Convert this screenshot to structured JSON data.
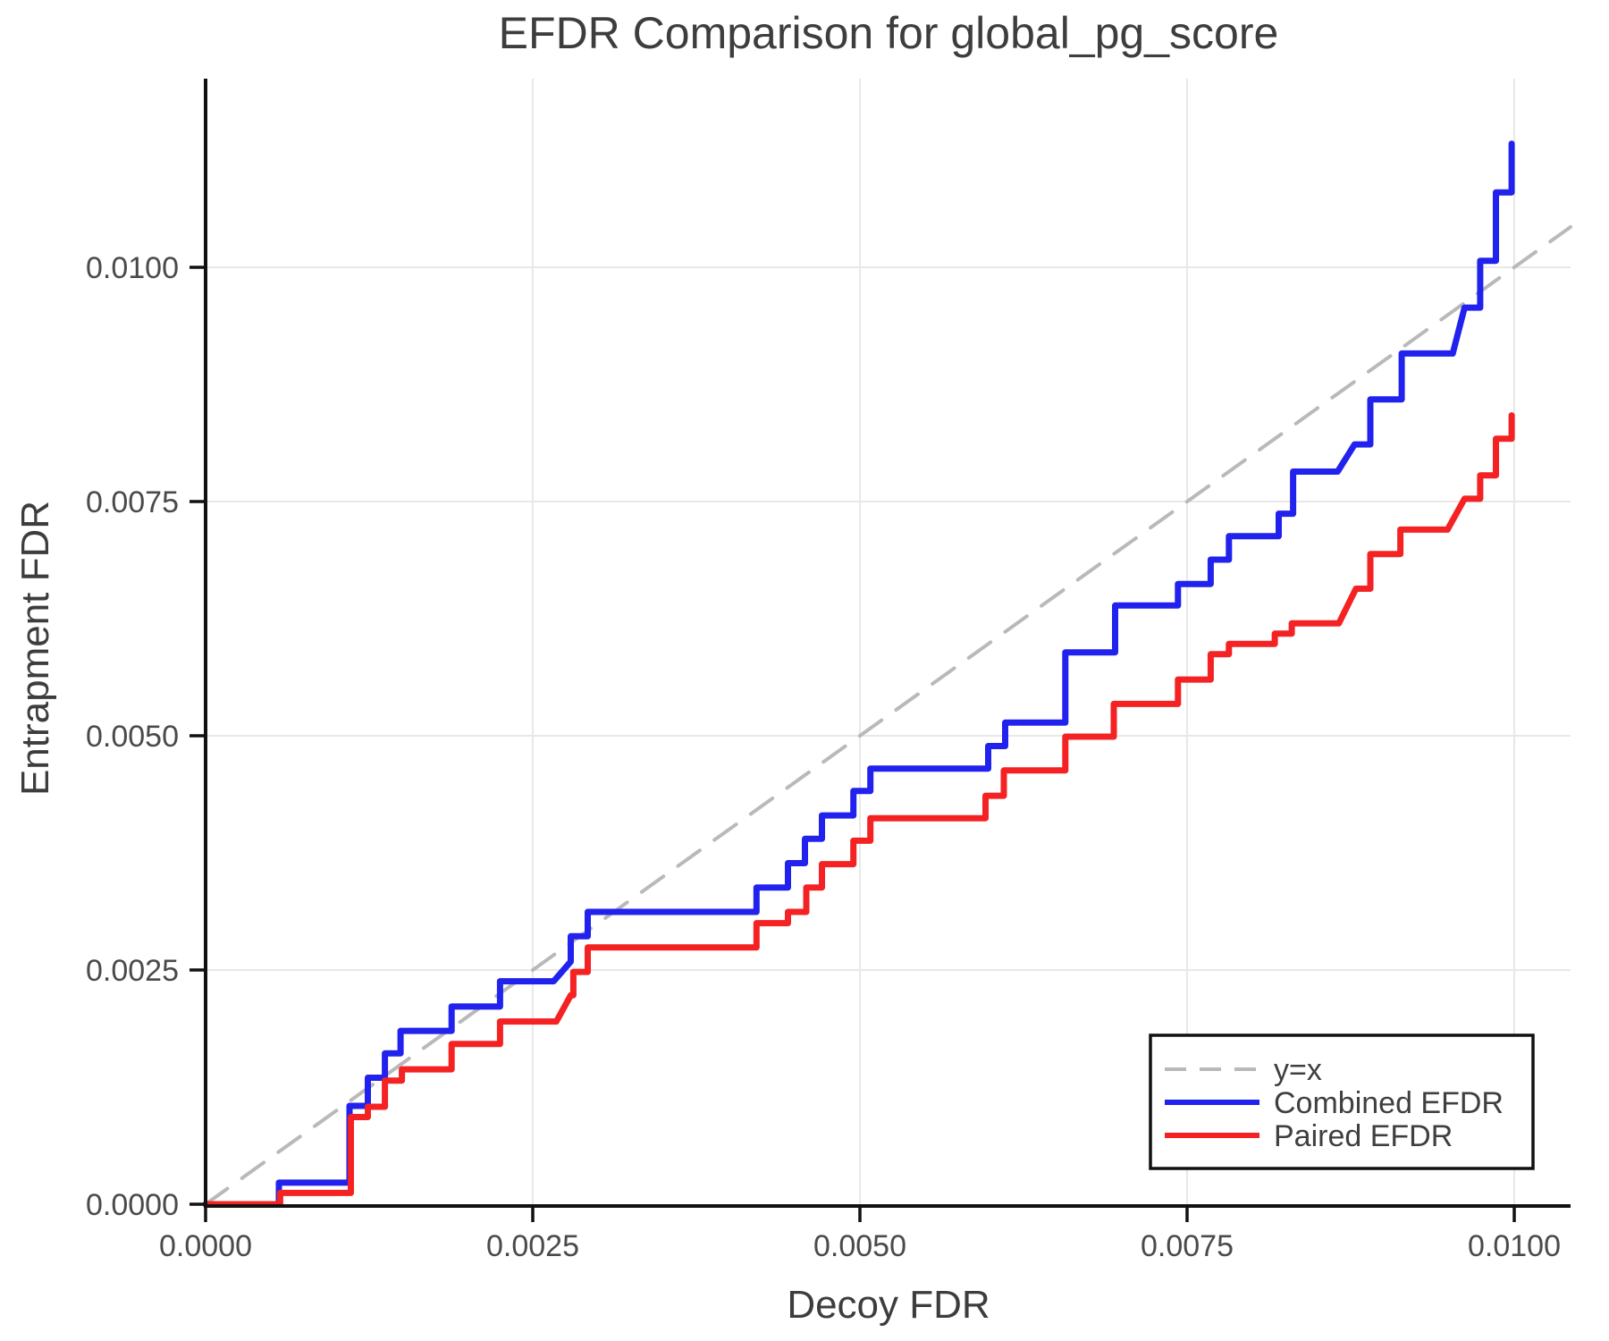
{
  "page": {
    "background": "#ffffff"
  },
  "chart_data": {
    "type": "line",
    "subtype": "step-function-comparison",
    "title": "EFDR Comparison for global_pg_score",
    "xlabel": "Decoy FDR",
    "ylabel": "Entrapment FDR",
    "xlim": [
      0,
      0.01043
    ],
    "ylim": [
      0,
      0.01201
    ],
    "grid": true,
    "legend_position": "lower right",
    "x_axis": {
      "ticks": [
        {
          "value": 0.0,
          "label": "0.0000"
        },
        {
          "value": 0.0025,
          "label": "0.0025"
        },
        {
          "value": 0.005,
          "label": "0.0050"
        },
        {
          "value": 0.0075,
          "label": "0.0075"
        },
        {
          "value": 0.01,
          "label": "0.0100"
        }
      ]
    },
    "y_axis": {
      "ticks": [
        {
          "value": 0.0,
          "label": "0.0000"
        },
        {
          "value": 0.0025,
          "label": "0.0025"
        },
        {
          "value": 0.005,
          "label": "0.0050"
        },
        {
          "value": 0.0075,
          "label": "0.0075"
        },
        {
          "value": 0.01,
          "label": "0.0100"
        }
      ]
    },
    "colors": {
      "identity_line": "#b9b9b9",
      "combined_efdr": "#2222ee",
      "paired_efdr": "#f42222",
      "gridline": "#e8e8e8",
      "axis": "#111111",
      "text": "#3d3d3d",
      "tick_text": "#4a4a4a"
    },
    "series": [
      {
        "name": "y=x",
        "color": "#b9b9b9",
        "style": "dashed",
        "width": 4,
        "points": [
          [
            0,
            0
          ],
          [
            0.01043,
            0.01043
          ]
        ]
      },
      {
        "name": "Combined EFDR",
        "color": "#2222ee",
        "style": "solid",
        "width": 7,
        "points": [
          [
            0,
            0
          ],
          [
            0.00056,
            0
          ],
          [
            0.00056,
            0.00023
          ],
          [
            0.0011,
            0.00023
          ],
          [
            0.0011,
            0.00105
          ],
          [
            0.00124,
            0.00105
          ],
          [
            0.00124,
            0.00135
          ],
          [
            0.00137,
            0.00135
          ],
          [
            0.00137,
            0.00161
          ],
          [
            0.00149,
            0.00161
          ],
          [
            0.00149,
            0.00185
          ],
          [
            0.00188,
            0.00185
          ],
          [
            0.00188,
            0.00211
          ],
          [
            0.00225,
            0.00211
          ],
          [
            0.00225,
            0.00238
          ],
          [
            0.00266,
            0.00238
          ],
          [
            0.00279,
            0.00259
          ],
          [
            0.00279,
            0.00286
          ],
          [
            0.00292,
            0.00286
          ],
          [
            0.00292,
            0.00312
          ],
          [
            0.00421,
            0.00312
          ],
          [
            0.00421,
            0.00338
          ],
          [
            0.00445,
            0.00338
          ],
          [
            0.00445,
            0.00364
          ],
          [
            0.00458,
            0.00364
          ],
          [
            0.00458,
            0.0039
          ],
          [
            0.00471,
            0.0039
          ],
          [
            0.00471,
            0.00415
          ],
          [
            0.00495,
            0.00415
          ],
          [
            0.00495,
            0.00441
          ],
          [
            0.00508,
            0.00441
          ],
          [
            0.00508,
            0.00465
          ],
          [
            0.00598,
            0.00465
          ],
          [
            0.00598,
            0.00489
          ],
          [
            0.00611,
            0.00489
          ],
          [
            0.00611,
            0.00514
          ],
          [
            0.00657,
            0.00514
          ],
          [
            0.00657,
            0.00589
          ],
          [
            0.00695,
            0.00589
          ],
          [
            0.00695,
            0.00639
          ],
          [
            0.00743,
            0.00639
          ],
          [
            0.00743,
            0.00662
          ],
          [
            0.00768,
            0.00662
          ],
          [
            0.00768,
            0.00688
          ],
          [
            0.00782,
            0.00688
          ],
          [
            0.00782,
            0.00713
          ],
          [
            0.0082,
            0.00713
          ],
          [
            0.0082,
            0.00737
          ],
          [
            0.00831,
            0.00737
          ],
          [
            0.00831,
            0.00782
          ],
          [
            0.00865,
            0.00782
          ],
          [
            0.00878,
            0.00811
          ],
          [
            0.0089,
            0.00811
          ],
          [
            0.0089,
            0.00859
          ],
          [
            0.00914,
            0.00859
          ],
          [
            0.00914,
            0.00908
          ],
          [
            0.00953,
            0.00908
          ],
          [
            0.00962,
            0.00957
          ],
          [
            0.00974,
            0.00957
          ],
          [
            0.00974,
            0.01007
          ],
          [
            0.00986,
            0.01007
          ],
          [
            0.00986,
            0.0108
          ],
          [
            0.00998,
            0.0108
          ],
          [
            0.00998,
            0.01132
          ]
        ]
      },
      {
        "name": "Paired EFDR",
        "color": "#f42222",
        "style": "solid",
        "width": 7,
        "points": [
          [
            0,
            0
          ],
          [
            0.00057,
            0
          ],
          [
            0.00057,
            0.00012
          ],
          [
            0.00111,
            0.00012
          ],
          [
            0.00111,
            0.00093
          ],
          [
            0.00124,
            0.00093
          ],
          [
            0.00124,
            0.00104
          ],
          [
            0.00137,
            0.00104
          ],
          [
            0.00137,
            0.00132
          ],
          [
            0.0015,
            0.00132
          ],
          [
            0.0015,
            0.00144
          ],
          [
            0.00188,
            0.00144
          ],
          [
            0.00188,
            0.00171
          ],
          [
            0.00225,
            0.00171
          ],
          [
            0.00225,
            0.00195
          ],
          [
            0.00268,
            0.00195
          ],
          [
            0.00279,
            0.00223
          ],
          [
            0.00281,
            0.00223
          ],
          [
            0.00281,
            0.00248
          ],
          [
            0.00292,
            0.00248
          ],
          [
            0.00292,
            0.00274
          ],
          [
            0.00421,
            0.00274
          ],
          [
            0.00421,
            0.003
          ],
          [
            0.00445,
            0.003
          ],
          [
            0.00445,
            0.00312
          ],
          [
            0.00459,
            0.00312
          ],
          [
            0.00459,
            0.00338
          ],
          [
            0.00471,
            0.00338
          ],
          [
            0.00471,
            0.00363
          ],
          [
            0.00495,
            0.00363
          ],
          [
            0.00495,
            0.00388
          ],
          [
            0.00508,
            0.00388
          ],
          [
            0.00508,
            0.00412
          ],
          [
            0.00596,
            0.00412
          ],
          [
            0.00596,
            0.00436
          ],
          [
            0.0061,
            0.00436
          ],
          [
            0.0061,
            0.00463
          ],
          [
            0.00657,
            0.00463
          ],
          [
            0.00657,
            0.00499
          ],
          [
            0.00694,
            0.00499
          ],
          [
            0.00694,
            0.00534
          ],
          [
            0.00743,
            0.00534
          ],
          [
            0.00743,
            0.0056
          ],
          [
            0.00768,
            0.0056
          ],
          [
            0.00768,
            0.00587
          ],
          [
            0.00782,
            0.00587
          ],
          [
            0.00782,
            0.00598
          ],
          [
            0.00817,
            0.00598
          ],
          [
            0.00817,
            0.00609
          ],
          [
            0.0083,
            0.00609
          ],
          [
            0.0083,
            0.0062
          ],
          [
            0.00866,
            0.0062
          ],
          [
            0.00879,
            0.00657
          ],
          [
            0.0089,
            0.00657
          ],
          [
            0.0089,
            0.00694
          ],
          [
            0.00913,
            0.00694
          ],
          [
            0.00913,
            0.0072
          ],
          [
            0.00949,
            0.0072
          ],
          [
            0.00962,
            0.00753
          ],
          [
            0.00974,
            0.00753
          ],
          [
            0.00974,
            0.00778
          ],
          [
            0.00986,
            0.00778
          ],
          [
            0.00986,
            0.00817
          ],
          [
            0.00998,
            0.00817
          ],
          [
            0.00998,
            0.00842
          ]
        ]
      }
    ]
  }
}
